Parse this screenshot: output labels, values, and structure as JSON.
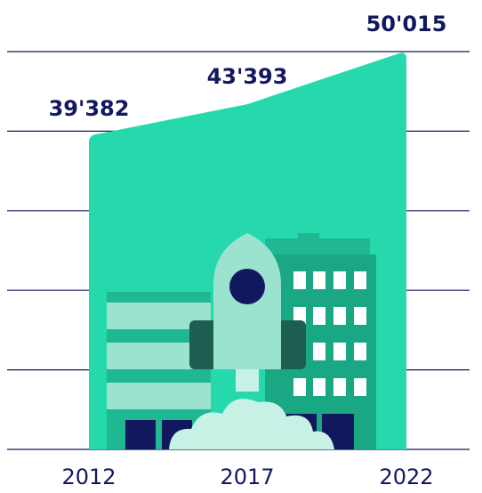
{
  "chart_data": {
    "type": "area",
    "categories": [
      "2012",
      "2017",
      "2022"
    ],
    "values": [
      39382,
      43393,
      50015
    ],
    "value_labels": [
      "39'382",
      "43'393",
      "50'015"
    ],
    "color": "#26d9ac",
    "ylim": [
      0,
      50000
    ],
    "yticks": [
      0,
      10000,
      20000,
      30000,
      40000,
      50000
    ],
    "grid": true
  }
}
